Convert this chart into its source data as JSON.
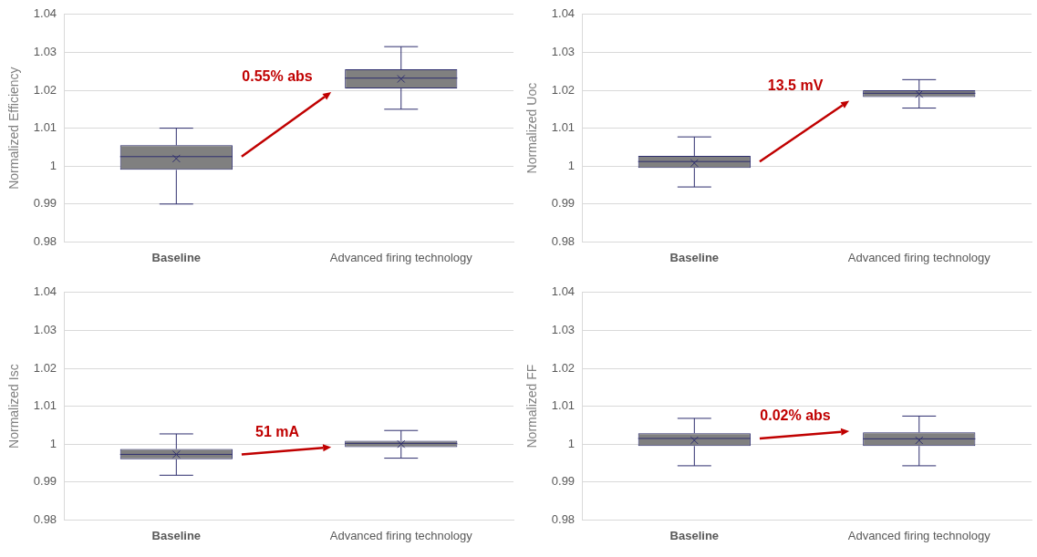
{
  "chart_data": [
    {
      "type": "box",
      "ylabel": "Normalized Efficiency",
      "categories": [
        "Baseline",
        "Advanced firing technology"
      ],
      "ylim": [
        0.98,
        1.04
      ],
      "yticks": [
        0.98,
        0.99,
        1,
        1.01,
        1.02,
        1.03,
        1.04
      ],
      "grid": "y",
      "color": "#2e2e6e",
      "annotations": [
        "0.55% abs"
      ],
      "boxes": [
        {
          "low": 0.99,
          "q1": 0.999,
          "median": 1.0025,
          "q3": 1.0055,
          "high": 1.01,
          "mean": 1.002
        },
        {
          "low": 1.015,
          "q1": 1.0205,
          "median": 1.0232,
          "q3": 1.0255,
          "high": 1.0315,
          "mean": 1.023
        }
      ]
    },
    {
      "type": "box",
      "ylabel": "Normalized Uoc",
      "categories": [
        "Baseline",
        "Advanced firing technology"
      ],
      "ylim": [
        0.98,
        1.04
      ],
      "yticks": [
        0.98,
        0.99,
        1,
        1.01,
        1.02,
        1.03,
        1.04
      ],
      "grid": "y",
      "color": "#2e2e6e",
      "annotations": [
        "13.5 mV"
      ],
      "boxes": [
        {
          "low": 0.9945,
          "q1": 0.9995,
          "median": 1.0012,
          "q3": 1.0027,
          "high": 1.0077,
          "mean": 1.0008
        },
        {
          "low": 1.0153,
          "q1": 1.0182,
          "median": 1.0192,
          "q3": 1.02,
          "high": 1.0228,
          "mean": 1.019
        }
      ]
    },
    {
      "type": "box",
      "ylabel": "Normalized Isc",
      "categories": [
        "Baseline",
        "Advanced firing technology"
      ],
      "ylim": [
        0.98,
        1.04
      ],
      "yticks": [
        0.98,
        0.99,
        1,
        1.01,
        1.02,
        1.03,
        1.04
      ],
      "grid": "y",
      "color": "#2e2e6e",
      "annotations": [
        "51 mA"
      ],
      "boxes": [
        {
          "low": 0.9918,
          "q1": 0.996,
          "median": 0.9973,
          "q3": 0.9987,
          "high": 1.0027,
          "mean": 0.9973
        },
        {
          "low": 0.9963,
          "q1": 0.9992,
          "median": 1.0002,
          "q3": 1.0009,
          "high": 1.0036,
          "mean": 1.0
        }
      ]
    },
    {
      "type": "box",
      "ylabel": "Normalized FF",
      "categories": [
        "Baseline",
        "Advanced firing technology"
      ],
      "ylim": [
        0.98,
        1.04
      ],
      "yticks": [
        0.98,
        0.99,
        1,
        1.01,
        1.02,
        1.03,
        1.04
      ],
      "grid": "y",
      "color": "#2e2e6e",
      "annotations": [
        "0.02% abs"
      ],
      "boxes": [
        {
          "low": 0.9943,
          "q1": 0.9995,
          "median": 1.0015,
          "q3": 1.0029,
          "high": 1.0068,
          "mean": 1.001
        },
        {
          "low": 0.9943,
          "q1": 0.9995,
          "median": 1.0014,
          "q3": 1.0031,
          "high": 1.0074,
          "mean": 1.001
        }
      ]
    }
  ]
}
